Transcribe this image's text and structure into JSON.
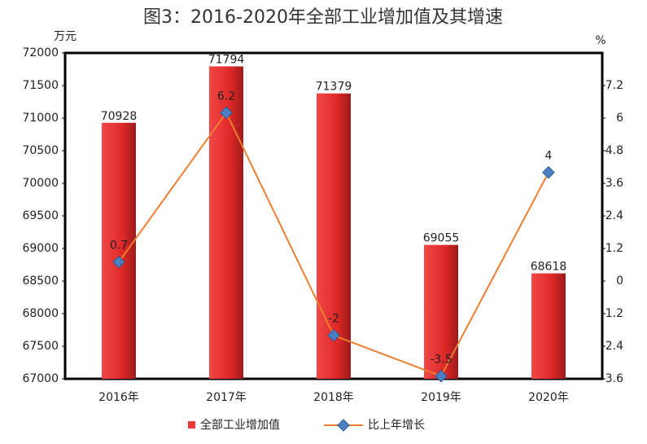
{
  "chart_data": {
    "type": "bar",
    "title": "图3：2016-2020年全部工业增加值及其增速",
    "y_unit": "万元",
    "y2_unit": "%",
    "categories": [
      "2016年",
      "2017年",
      "2018年",
      "2019年",
      "2020年"
    ],
    "series": [
      {
        "name": "全部工业增加值",
        "type": "bar",
        "color": "#e83a3a",
        "values": [
          70928,
          71794,
          71379,
          69055,
          68618
        ]
      },
      {
        "name": "比上年增长",
        "type": "line",
        "axis": "y2",
        "color": "#ed7d31",
        "marker_color": "#4a7fc1",
        "values": [
          0.7,
          6.2,
          -2,
          -3.5,
          4
        ]
      }
    ],
    "ylim": [
      67000,
      72000
    ],
    "yticks": [
      67000,
      67500,
      68000,
      68500,
      69000,
      69500,
      70000,
      70500,
      71000,
      71500,
      72000
    ],
    "y2lim": [
      -3.6,
      8.4
    ],
    "y2ticks": [
      -3.6,
      -2.4,
      -1.2,
      0,
      1.2,
      2.4,
      3.6,
      4.8,
      6,
      7.2
    ],
    "legend": "bottom"
  }
}
